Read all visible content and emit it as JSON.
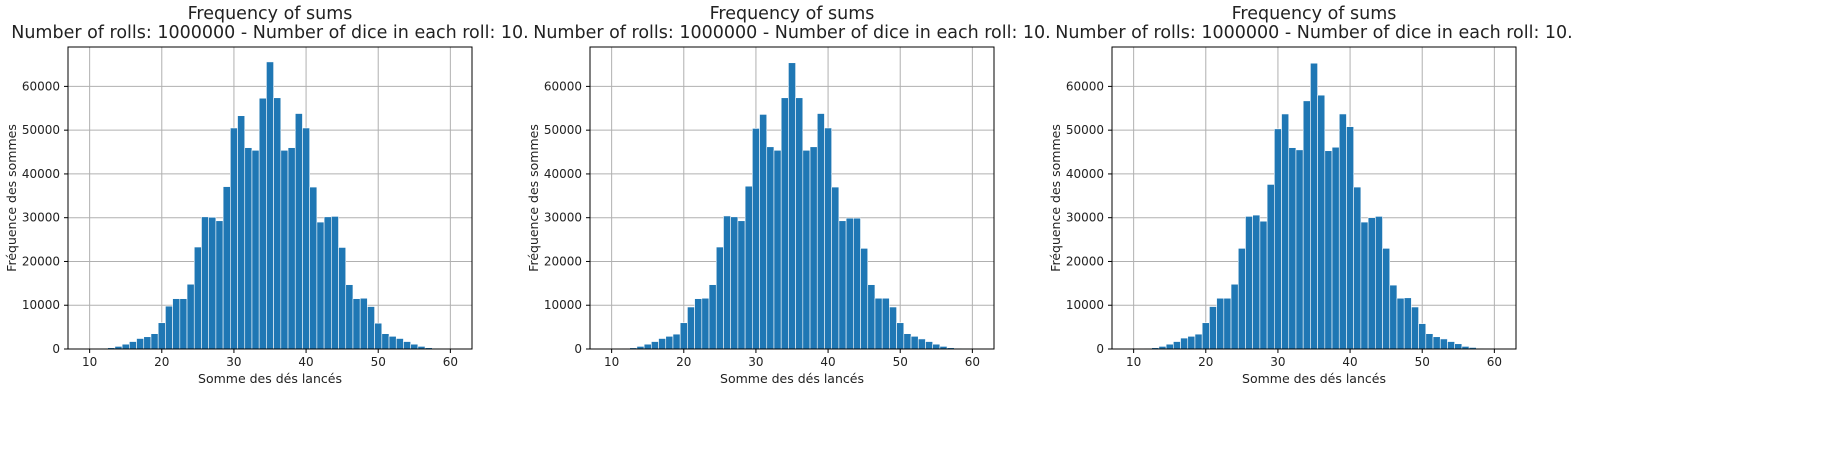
{
  "chart_data": [
    {
      "type": "bar",
      "title": "Frequency of sums",
      "subtitle": "Number of rolls: 1000000 - Number of dice in each roll: 10.",
      "xlabel": "Somme des dés lancés",
      "ylabel": "Fréquence des sommes",
      "xlim": [
        7,
        63
      ],
      "ylim": [
        0,
        69000
      ],
      "xticks": [
        10,
        20,
        30,
        40,
        50,
        60
      ],
      "yticks": [
        0,
        10000,
        20000,
        30000,
        40000,
        50000,
        60000
      ],
      "grid": true,
      "color": "#1f77b4",
      "bins": [
        {
          "x": 10,
          "y": 0
        },
        {
          "x": 11,
          "y": 20
        },
        {
          "x": 12,
          "y": 150
        },
        {
          "x": 13,
          "y": 300
        },
        {
          "x": 14,
          "y": 600
        },
        {
          "x": 15,
          "y": 1100
        },
        {
          "x": 16,
          "y": 1700
        },
        {
          "x": 17,
          "y": 2400
        },
        {
          "x": 18,
          "y": 2800
        },
        {
          "x": 19,
          "y": 3500
        },
        {
          "x": 20,
          "y": 6000
        },
        {
          "x": 21,
          "y": 9800
        },
        {
          "x": 22,
          "y": 11500
        },
        {
          "x": 23,
          "y": 11500
        },
        {
          "x": 24,
          "y": 14800
        },
        {
          "x": 25,
          "y": 23300
        },
        {
          "x": 26,
          "y": 30200
        },
        {
          "x": 27,
          "y": 30100
        },
        {
          "x": 28,
          "y": 29300
        },
        {
          "x": 29,
          "y": 37100
        },
        {
          "x": 30,
          "y": 50500
        },
        {
          "x": 31,
          "y": 53300
        },
        {
          "x": 32,
          "y": 46000
        },
        {
          "x": 33,
          "y": 45400
        },
        {
          "x": 34,
          "y": 57300
        },
        {
          "x": 35,
          "y": 65600
        },
        {
          "x": 36,
          "y": 57400
        },
        {
          "x": 37,
          "y": 45400
        },
        {
          "x": 38,
          "y": 46000
        },
        {
          "x": 39,
          "y": 53800
        },
        {
          "x": 40,
          "y": 50500
        },
        {
          "x": 41,
          "y": 37000
        },
        {
          "x": 42,
          "y": 29000
        },
        {
          "x": 43,
          "y": 30200
        },
        {
          "x": 44,
          "y": 30300
        },
        {
          "x": 45,
          "y": 23200
        },
        {
          "x": 46,
          "y": 14700
        },
        {
          "x": 47,
          "y": 11500
        },
        {
          "x": 48,
          "y": 11600
        },
        {
          "x": 49,
          "y": 9700
        },
        {
          "x": 50,
          "y": 5900
        },
        {
          "x": 51,
          "y": 3500
        },
        {
          "x": 52,
          "y": 2900
        },
        {
          "x": 53,
          "y": 2400
        },
        {
          "x": 54,
          "y": 1700
        },
        {
          "x": 55,
          "y": 1100
        },
        {
          "x": 56,
          "y": 600
        },
        {
          "x": 57,
          "y": 300
        },
        {
          "x": 58,
          "y": 150
        },
        {
          "x": 59,
          "y": 30
        },
        {
          "x": 60,
          "y": 10
        }
      ]
    },
    {
      "type": "bar",
      "title": "Frequency of sums",
      "subtitle": "Number of rolls: 1000000 - Number of dice in each roll: 10.",
      "xlabel": "Somme des dés lancés",
      "ylabel": "Fréquence des sommes",
      "xlim": [
        7,
        63
      ],
      "ylim": [
        0,
        69000
      ],
      "xticks": [
        10,
        20,
        30,
        40,
        50,
        60
      ],
      "yticks": [
        0,
        10000,
        20000,
        30000,
        40000,
        50000,
        60000
      ],
      "grid": true,
      "color": "#1f77b4",
      "bins": [
        {
          "x": 10,
          "y": 0
        },
        {
          "x": 11,
          "y": 20
        },
        {
          "x": 12,
          "y": 120
        },
        {
          "x": 13,
          "y": 280
        },
        {
          "x": 14,
          "y": 600
        },
        {
          "x": 15,
          "y": 1100
        },
        {
          "x": 16,
          "y": 1700
        },
        {
          "x": 17,
          "y": 2400
        },
        {
          "x": 18,
          "y": 2900
        },
        {
          "x": 19,
          "y": 3400
        },
        {
          "x": 20,
          "y": 6000
        },
        {
          "x": 21,
          "y": 9600
        },
        {
          "x": 22,
          "y": 11500
        },
        {
          "x": 23,
          "y": 11600
        },
        {
          "x": 24,
          "y": 14700
        },
        {
          "x": 25,
          "y": 23300
        },
        {
          "x": 26,
          "y": 30400
        },
        {
          "x": 27,
          "y": 30200
        },
        {
          "x": 28,
          "y": 29300
        },
        {
          "x": 29,
          "y": 37200
        },
        {
          "x": 30,
          "y": 50400
        },
        {
          "x": 31,
          "y": 53600
        },
        {
          "x": 32,
          "y": 46200
        },
        {
          "x": 33,
          "y": 45400
        },
        {
          "x": 34,
          "y": 57400
        },
        {
          "x": 35,
          "y": 65400
        },
        {
          "x": 36,
          "y": 57400
        },
        {
          "x": 37,
          "y": 45400
        },
        {
          "x": 38,
          "y": 46200
        },
        {
          "x": 39,
          "y": 53800
        },
        {
          "x": 40,
          "y": 50500
        },
        {
          "x": 41,
          "y": 37000
        },
        {
          "x": 42,
          "y": 29300
        },
        {
          "x": 43,
          "y": 29900
        },
        {
          "x": 44,
          "y": 29900
        },
        {
          "x": 45,
          "y": 23000
        },
        {
          "x": 46,
          "y": 14700
        },
        {
          "x": 47,
          "y": 11600
        },
        {
          "x": 48,
          "y": 11600
        },
        {
          "x": 49,
          "y": 9600
        },
        {
          "x": 50,
          "y": 6000
        },
        {
          "x": 51,
          "y": 3500
        },
        {
          "x": 52,
          "y": 2900
        },
        {
          "x": 53,
          "y": 2300
        },
        {
          "x": 54,
          "y": 1700
        },
        {
          "x": 55,
          "y": 1100
        },
        {
          "x": 56,
          "y": 600
        },
        {
          "x": 57,
          "y": 300
        },
        {
          "x": 58,
          "y": 130
        },
        {
          "x": 59,
          "y": 30
        },
        {
          "x": 60,
          "y": 10
        }
      ]
    },
    {
      "type": "bar",
      "title": "Frequency of sums",
      "subtitle": "Number of rolls: 1000000 - Number of dice in each roll: 10.",
      "xlabel": "Somme des dés lancés",
      "ylabel": "Fréquence des sommes",
      "xlim": [
        7,
        63
      ],
      "ylim": [
        0,
        69000
      ],
      "xticks": [
        10,
        20,
        30,
        40,
        50,
        60
      ],
      "yticks": [
        0,
        10000,
        20000,
        30000,
        40000,
        50000,
        60000
      ],
      "grid": true,
      "color": "#1f77b4",
      "bins": [
        {
          "x": 10,
          "y": 0
        },
        {
          "x": 11,
          "y": 20
        },
        {
          "x": 12,
          "y": 150
        },
        {
          "x": 13,
          "y": 300
        },
        {
          "x": 14,
          "y": 600
        },
        {
          "x": 15,
          "y": 1100
        },
        {
          "x": 16,
          "y": 1700
        },
        {
          "x": 17,
          "y": 2500
        },
        {
          "x": 18,
          "y": 2900
        },
        {
          "x": 19,
          "y": 3400
        },
        {
          "x": 20,
          "y": 6000
        },
        {
          "x": 21,
          "y": 9700
        },
        {
          "x": 22,
          "y": 11600
        },
        {
          "x": 23,
          "y": 11600
        },
        {
          "x": 24,
          "y": 14800
        },
        {
          "x": 25,
          "y": 23000
        },
        {
          "x": 26,
          "y": 30300
        },
        {
          "x": 27,
          "y": 30600
        },
        {
          "x": 28,
          "y": 29200
        },
        {
          "x": 29,
          "y": 37600
        },
        {
          "x": 30,
          "y": 50300
        },
        {
          "x": 31,
          "y": 53700
        },
        {
          "x": 32,
          "y": 46000
        },
        {
          "x": 33,
          "y": 45500
        },
        {
          "x": 34,
          "y": 56700
        },
        {
          "x": 35,
          "y": 65300
        },
        {
          "x": 36,
          "y": 58000
        },
        {
          "x": 37,
          "y": 45300
        },
        {
          "x": 38,
          "y": 46100
        },
        {
          "x": 39,
          "y": 53700
        },
        {
          "x": 40,
          "y": 50800
        },
        {
          "x": 41,
          "y": 37000
        },
        {
          "x": 42,
          "y": 29000
        },
        {
          "x": 43,
          "y": 30000
        },
        {
          "x": 44,
          "y": 30300
        },
        {
          "x": 45,
          "y": 23000
        },
        {
          "x": 46,
          "y": 14600
        },
        {
          "x": 47,
          "y": 11600
        },
        {
          "x": 48,
          "y": 11700
        },
        {
          "x": 49,
          "y": 9600
        },
        {
          "x": 50,
          "y": 5800
        },
        {
          "x": 51,
          "y": 3500
        },
        {
          "x": 52,
          "y": 2800
        },
        {
          "x": 53,
          "y": 2300
        },
        {
          "x": 54,
          "y": 1700
        },
        {
          "x": 55,
          "y": 1200
        },
        {
          "x": 56,
          "y": 600
        },
        {
          "x": 57,
          "y": 350
        },
        {
          "x": 58,
          "y": 150
        },
        {
          "x": 59,
          "y": 40
        },
        {
          "x": 60,
          "y": 10
        }
      ]
    }
  ]
}
